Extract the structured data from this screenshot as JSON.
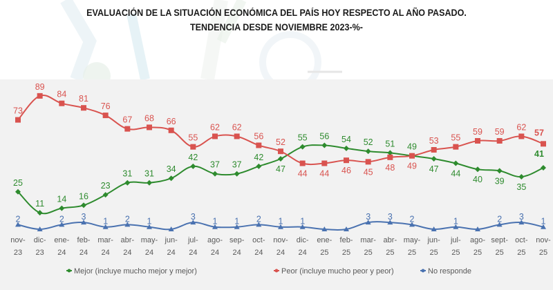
{
  "title_line1": "EVALUACIÓN DE LA SITUACIÓN ECONÓMICA DEL PAÍS HOY RESPECTO AL AÑO PASADO.",
  "title_line2": "TENDENCIA DESDE NOVIEMBRE 2023-%-",
  "chart_data": {
    "type": "line",
    "title": "EVALUACIÓN DE LA SITUACIÓN ECONÓMICA DEL PAÍS HOY RESPECTO AL AÑO PASADO. TENDENCIA DESDE NOVIEMBRE 2023-%-",
    "xlabel": "",
    "ylabel": "%",
    "ylim": [
      0,
      100
    ],
    "grid": false,
    "legend_position": "bottom",
    "categories": [
      [
        "nov-",
        "23"
      ],
      [
        "dic-",
        "23"
      ],
      [
        "ene-",
        "24"
      ],
      [
        "feb-",
        "24"
      ],
      [
        "mar-",
        "24"
      ],
      [
        "abr-",
        "24"
      ],
      [
        "may-",
        "24"
      ],
      [
        "jun-",
        "24"
      ],
      [
        "jul-",
        "24"
      ],
      [
        "ago-",
        "24"
      ],
      [
        "sep-",
        "24"
      ],
      [
        "oct-",
        "24"
      ],
      [
        "nov-",
        "24"
      ],
      [
        "dic-",
        "24"
      ],
      [
        "ene-",
        "25"
      ],
      [
        "feb-",
        "25"
      ],
      [
        "mar-",
        "25"
      ],
      [
        "abr-",
        "25"
      ],
      [
        "may-",
        "25"
      ],
      [
        "jun-",
        "25"
      ],
      [
        "jul-",
        "25"
      ],
      [
        "ago-",
        "25"
      ],
      [
        "sept-",
        "25"
      ],
      [
        "oct-",
        "25"
      ],
      [
        "nov-",
        "25"
      ]
    ],
    "series": [
      {
        "name": "Mejor (incluye mucho mejor y mejor)",
        "color": "#2e8b2e",
        "marker": "diamond",
        "values": [
          25,
          11,
          14,
          16,
          23,
          31,
          31,
          34,
          42,
          37,
          37,
          42,
          47,
          55,
          56,
          54,
          52,
          51,
          49,
          47,
          44,
          40,
          39,
          35,
          41
        ],
        "label_pos": [
          "above",
          "above",
          "above",
          "above",
          "above",
          "above",
          "above",
          "above",
          "above",
          "above",
          "above",
          "above",
          "below",
          "above",
          "above",
          "above",
          "above",
          "above",
          "above",
          "below",
          "below",
          "below",
          "below",
          "below",
          "above"
        ]
      },
      {
        "name": "Peor (incluye mucho peor y peor)",
        "color": "#d9534f",
        "marker": "square",
        "values": [
          73,
          89,
          84,
          81,
          76,
          67,
          68,
          66,
          55,
          62,
          62,
          56,
          52,
          44,
          44,
          46,
          45,
          48,
          49,
          53,
          55,
          59,
          59,
          62,
          57
        ],
        "label_pos": [
          "above",
          "above",
          "above",
          "above",
          "above",
          "above",
          "above",
          "above",
          "above",
          "above",
          "above",
          "above",
          "above",
          "below",
          "below",
          "below",
          "below",
          "below",
          "below",
          "above",
          "above",
          "above",
          "above",
          "above",
          "above"
        ]
      },
      {
        "name": "No responde",
        "color": "#4a72b0",
        "marker": "triangle",
        "values": [
          2,
          0,
          2,
          3,
          1,
          2,
          1,
          0,
          3,
          1,
          1,
          2,
          1,
          1,
          0,
          0,
          3,
          3,
          2,
          0,
          1,
          0,
          2,
          3,
          1
        ],
        "show_label": [
          true,
          false,
          true,
          true,
          true,
          true,
          true,
          false,
          true,
          true,
          true,
          true,
          true,
          true,
          false,
          false,
          true,
          true,
          true,
          false,
          true,
          false,
          true,
          true,
          true
        ]
      }
    ]
  }
}
